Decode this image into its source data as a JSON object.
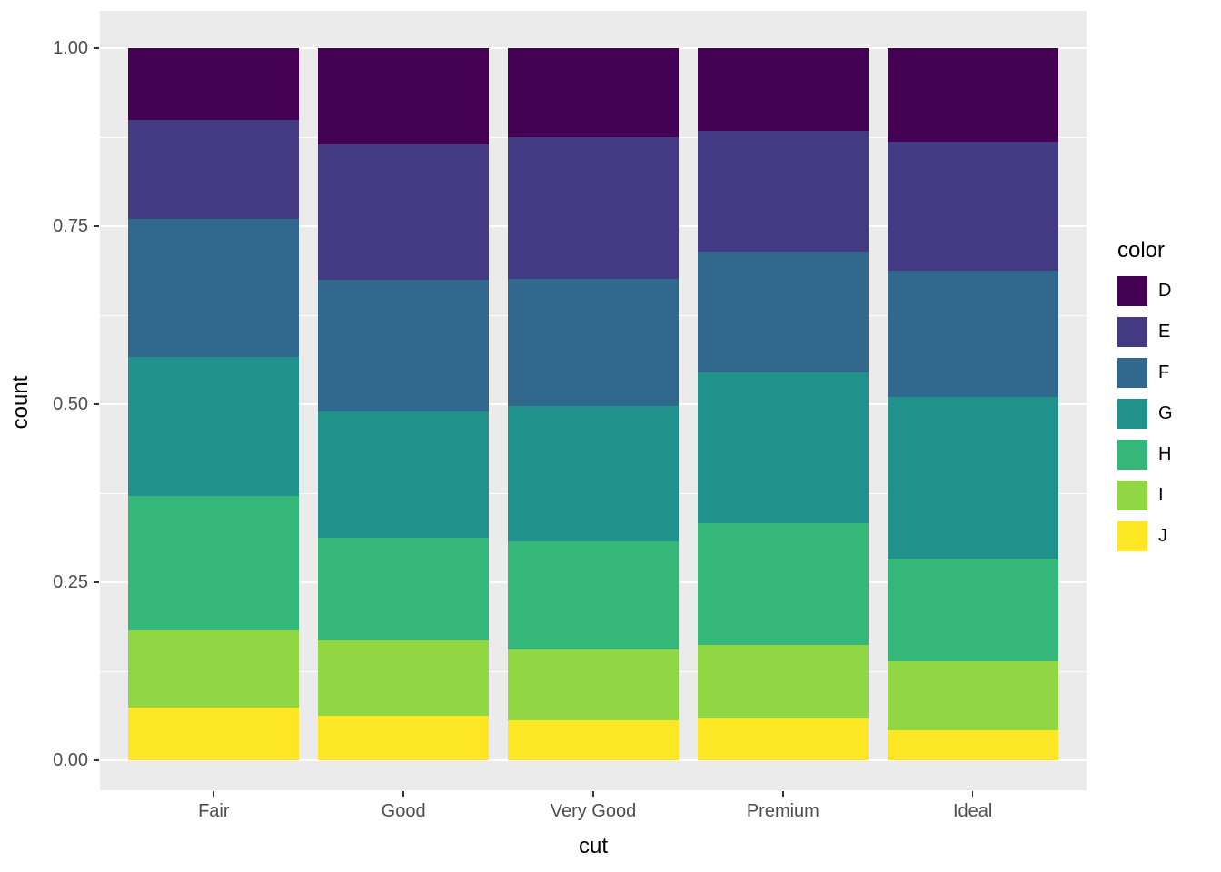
{
  "chart_data": {
    "type": "bar",
    "variant": "stacked-filled",
    "title": "",
    "xlabel": "cut",
    "ylabel": "count",
    "categories": [
      "Fair",
      "Good",
      "Very Good",
      "Premium",
      "Ideal"
    ],
    "ylim": [
      0,
      1
    ],
    "y_ticks": [
      {
        "label": "0.00",
        "value": 0
      },
      {
        "label": "0.25",
        "value": 0.25
      },
      {
        "label": "0.50",
        "value": 0.5
      },
      {
        "label": "0.75",
        "value": 0.75
      },
      {
        "label": "1.00",
        "value": 1
      }
    ],
    "legend_title": "color",
    "legend_position": "right",
    "series": [
      {
        "name": "D",
        "color": "#440154",
        "values": [
          0.1012,
          0.1349,
          0.1252,
          0.1162,
          0.1315
        ]
      },
      {
        "name": "E",
        "color": "#443983",
        "values": [
          0.1391,
          0.1902,
          0.1986,
          0.1695,
          0.1811
        ]
      },
      {
        "name": "F",
        "color": "#31688E",
        "values": [
          0.1938,
          0.1853,
          0.1791,
          0.169,
          0.1775
        ]
      },
      {
        "name": "G",
        "color": "#21918C",
        "values": [
          0.195,
          0.1775,
          0.1903,
          0.212,
          0.2266
        ]
      },
      {
        "name": "H",
        "color": "#35B779",
        "values": [
          0.1882,
          0.1431,
          0.151,
          0.1711,
          0.1445
        ]
      },
      {
        "name": "I",
        "color": "#90D743",
        "values": [
          0.1087,
          0.1064,
          0.0997,
          0.1035,
          0.0971
        ]
      },
      {
        "name": "J",
        "color": "#FDE725",
        "values": [
          0.0739,
          0.0626,
          0.0561,
          0.0586,
          0.0416
        ]
      }
    ],
    "stack_order_bottom_to_top": [
      "J",
      "I",
      "H",
      "G",
      "F",
      "E",
      "D"
    ],
    "grid": "on"
  },
  "style": {
    "panel_background": "#EBEBEB",
    "grid_color": "#FFFFFF",
    "tick_label_color": "#4D4D4D",
    "axis_title_color": "#000000"
  }
}
